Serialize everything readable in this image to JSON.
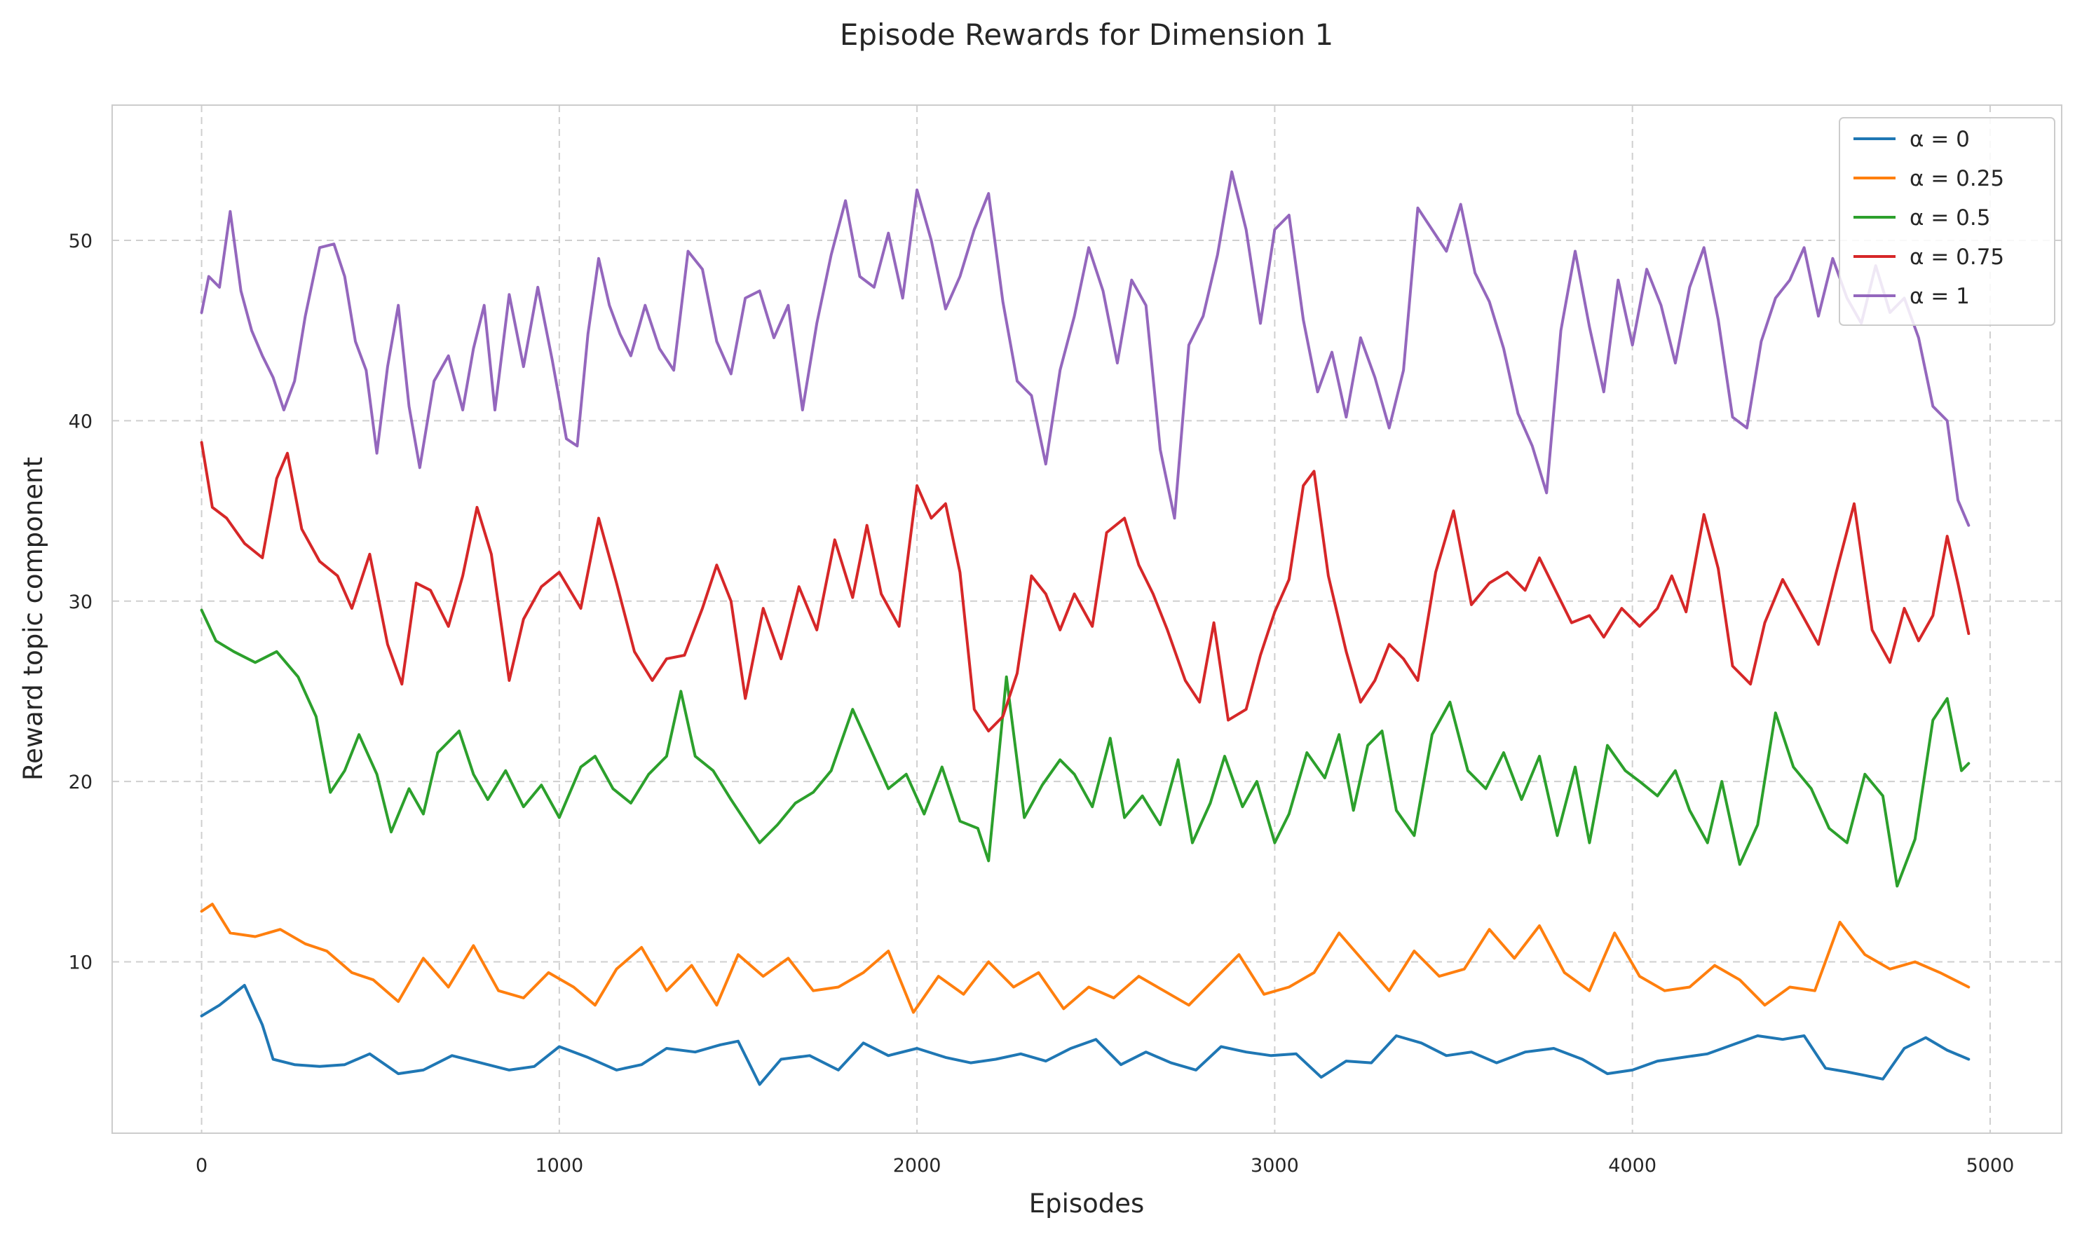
{
  "chart_data": {
    "type": "line",
    "title": "Episode Rewards for Dimension 1",
    "xlabel": "Episodes",
    "ylabel": "Reward topic component",
    "xlim": [
      -250,
      5200
    ],
    "ylim": [
      0.5,
      57.5
    ],
    "xticks": [
      0,
      1000,
      2000,
      3000,
      4000,
      5000
    ],
    "yticks": [
      10,
      20,
      30,
      40,
      50
    ],
    "grid": true,
    "legend_position": "top-right",
    "series": [
      {
        "name": "α = 0",
        "color": "#1f77b4",
        "x": [
          0,
          50,
          120,
          170,
          200,
          260,
          330,
          400,
          470,
          550,
          620,
          700,
          780,
          860,
          930,
          1000,
          1080,
          1160,
          1230,
          1300,
          1380,
          1450,
          1500,
          1560,
          1620,
          1700,
          1780,
          1850,
          1920,
          2000,
          2080,
          2150,
          2220,
          2290,
          2360,
          2430,
          2500,
          2570,
          2640,
          2710,
          2780,
          2850,
          2920,
          2990,
          3060,
          3130,
          3200,
          3270,
          3340,
          3410,
          3480,
          3550,
          3620,
          3700,
          3780,
          3860,
          3930,
          4000,
          4070,
          4140,
          4210,
          4280,
          4350,
          4420,
          4480,
          4540,
          4600,
          4650,
          4700,
          4760,
          4820,
          4880,
          4940
        ],
        "y": [
          7.0,
          7.6,
          8.7,
          6.5,
          4.6,
          4.3,
          4.2,
          4.3,
          4.9,
          3.8,
          4.0,
          4.8,
          4.4,
          4.0,
          4.2,
          5.3,
          4.7,
          4.0,
          4.3,
          5.2,
          5.0,
          5.4,
          5.6,
          3.2,
          4.6,
          4.8,
          4.0,
          5.5,
          4.8,
          5.2,
          4.7,
          4.4,
          4.6,
          4.9,
          4.5,
          5.2,
          5.7,
          4.3,
          5.0,
          4.4,
          4.0,
          5.3,
          5.0,
          4.8,
          4.9,
          3.6,
          4.5,
          4.4,
          5.9,
          5.5,
          4.8,
          5.0,
          4.4,
          5.0,
          5.2,
          4.6,
          3.8,
          4.0,
          4.5,
          4.7,
          4.9,
          5.4,
          5.9,
          5.7,
          5.9,
          4.1,
          3.9,
          3.7,
          3.5,
          5.2,
          5.8,
          5.1,
          4.6
        ]
      },
      {
        "name": "α = 0.25",
        "color": "#ff7f0e",
        "x": [
          0,
          30,
          80,
          150,
          220,
          290,
          350,
          420,
          480,
          550,
          620,
          690,
          760,
          830,
          900,
          970,
          1040,
          1100,
          1160,
          1230,
          1300,
          1370,
          1440,
          1500,
          1570,
          1640,
          1710,
          1780,
          1850,
          1920,
          1990,
          2060,
          2130,
          2200,
          2270,
          2340,
          2410,
          2480,
          2550,
          2620,
          2690,
          2760,
          2830,
          2900,
          2970,
          3040,
          3110,
          3180,
          3250,
          3320,
          3390,
          3460,
          3530,
          3600,
          3670,
          3740,
          3810,
          3880,
          3950,
          4020,
          4090,
          4160,
          4230,
          4300,
          4370,
          4440,
          4510,
          4580,
          4650,
          4720,
          4790,
          4860,
          4940
        ],
        "y": [
          12.8,
          13.2,
          11.6,
          11.4,
          11.8,
          11.0,
          10.6,
          9.4,
          9.0,
          7.8,
          10.2,
          8.6,
          10.9,
          8.4,
          8.0,
          9.4,
          8.6,
          7.6,
          9.6,
          10.8,
          8.4,
          9.8,
          7.6,
          10.4,
          9.2,
          10.2,
          8.4,
          8.6,
          9.4,
          10.6,
          7.2,
          9.2,
          8.2,
          10.0,
          8.6,
          9.4,
          7.4,
          8.6,
          8.0,
          9.2,
          8.4,
          7.6,
          9.0,
          10.4,
          8.2,
          8.6,
          9.4,
          11.6,
          10.0,
          8.4,
          10.6,
          9.2,
          9.6,
          11.8,
          10.2,
          12.0,
          9.4,
          8.4,
          11.6,
          9.2,
          8.4,
          8.6,
          9.8,
          9.0,
          7.6,
          8.6,
          8.4,
          12.2,
          10.4,
          9.6,
          10.0,
          9.4,
          8.6
        ]
      },
      {
        "name": "α = 0.5",
        "color": "#2ca02c",
        "x": [
          0,
          40,
          90,
          150,
          210,
          270,
          320,
          360,
          400,
          440,
          490,
          530,
          580,
          620,
          660,
          720,
          760,
          800,
          850,
          900,
          950,
          1000,
          1060,
          1100,
          1150,
          1200,
          1250,
          1300,
          1340,
          1380,
          1430,
          1480,
          1520,
          1560,
          1610,
          1660,
          1710,
          1760,
          1820,
          1870,
          1920,
          1970,
          2020,
          2070,
          2120,
          2170,
          2200,
          2250,
          2300,
          2350,
          2400,
          2440,
          2490,
          2540,
          2580,
          2630,
          2680,
          2730,
          2770,
          2820,
          2860,
          2910,
          2950,
          3000,
          3040,
          3090,
          3140,
          3180,
          3220,
          3260,
          3300,
          3340,
          3390,
          3440,
          3490,
          3540,
          3590,
          3640,
          3690,
          3740,
          3790,
          3840,
          3880,
          3930,
          3980,
          4020,
          4070,
          4120,
          4160,
          4210,
          4250,
          4300,
          4350,
          4400,
          4450,
          4500,
          4550,
          4600,
          4650,
          4700,
          4740,
          4790,
          4840,
          4880,
          4920,
          4940
        ],
        "y": [
          29.5,
          27.8,
          27.2,
          26.6,
          27.2,
          25.8,
          23.6,
          19.4,
          20.6,
          22.6,
          20.4,
          17.2,
          19.6,
          18.2,
          21.6,
          22.8,
          20.4,
          19.0,
          20.6,
          18.6,
          19.8,
          18.0,
          20.8,
          21.4,
          19.6,
          18.8,
          20.4,
          21.4,
          25.0,
          21.4,
          20.6,
          19.0,
          17.8,
          16.6,
          17.6,
          18.8,
          19.4,
          20.6,
          24.0,
          21.8,
          19.6,
          20.4,
          18.2,
          20.8,
          17.8,
          17.4,
          15.6,
          25.8,
          18.0,
          19.8,
          21.2,
          20.4,
          18.6,
          22.4,
          18.0,
          19.2,
          17.6,
          21.2,
          16.6,
          18.8,
          21.4,
          18.6,
          20.0,
          16.6,
          18.2,
          21.6,
          20.2,
          22.6,
          18.4,
          22.0,
          22.8,
          18.4,
          17.0,
          22.6,
          24.4,
          20.6,
          19.6,
          21.6,
          19.0,
          21.4,
          17.0,
          20.8,
          16.6,
          22.0,
          20.6,
          20.0,
          19.2,
          20.6,
          18.4,
          16.6,
          20.0,
          15.4,
          17.6,
          23.8,
          20.8,
          19.6,
          17.4,
          16.6,
          20.4,
          19.2,
          14.2,
          16.8,
          23.4,
          24.6,
          20.6,
          21.0
        ]
      },
      {
        "name": "α = 0.75",
        "color": "#d62728",
        "x": [
          0,
          30,
          70,
          120,
          170,
          210,
          240,
          280,
          330,
          380,
          420,
          470,
          520,
          560,
          600,
          640,
          690,
          730,
          770,
          810,
          860,
          900,
          950,
          1000,
          1060,
          1110,
          1160,
          1210,
          1260,
          1300,
          1350,
          1400,
          1440,
          1480,
          1520,
          1570,
          1620,
          1670,
          1720,
          1770,
          1820,
          1860,
          1900,
          1950,
          2000,
          2040,
          2080,
          2120,
          2160,
          2200,
          2240,
          2280,
          2320,
          2360,
          2400,
          2440,
          2490,
          2530,
          2580,
          2620,
          2660,
          2700,
          2750,
          2790,
          2830,
          2870,
          2920,
          2960,
          3000,
          3040,
          3080,
          3110,
          3150,
          3200,
          3240,
          3280,
          3320,
          3360,
          3400,
          3450,
          3500,
          3550,
          3600,
          3650,
          3700,
          3740,
          3780,
          3830,
          3880,
          3920,
          3970,
          4020,
          4070,
          4110,
          4150,
          4200,
          4240,
          4280,
          4330,
          4370,
          4420,
          4470,
          4520,
          4570,
          4620,
          4670,
          4720,
          4760,
          4800,
          4840,
          4880,
          4910,
          4940
        ],
        "y": [
          38.8,
          35.2,
          34.6,
          33.2,
          32.4,
          36.8,
          38.2,
          34.0,
          32.2,
          31.4,
          29.6,
          32.6,
          27.6,
          25.4,
          31.0,
          30.6,
          28.6,
          31.4,
          35.2,
          32.6,
          25.6,
          29.0,
          30.8,
          31.6,
          29.6,
          34.6,
          31.0,
          27.2,
          25.6,
          26.8,
          27.0,
          29.6,
          32.0,
          30.0,
          24.6,
          29.6,
          26.8,
          30.8,
          28.4,
          33.4,
          30.2,
          34.2,
          30.4,
          28.6,
          36.4,
          34.6,
          35.4,
          31.6,
          24.0,
          22.8,
          23.6,
          26.0,
          31.4,
          30.4,
          28.4,
          30.4,
          28.6,
          33.8,
          34.6,
          32.0,
          30.4,
          28.4,
          25.6,
          24.4,
          28.8,
          23.4,
          24.0,
          27.0,
          29.4,
          31.2,
          36.4,
          37.2,
          31.4,
          27.2,
          24.4,
          25.6,
          27.6,
          26.8,
          25.6,
          31.6,
          35.0,
          29.8,
          31.0,
          31.6,
          30.6,
          32.4,
          30.8,
          28.8,
          29.2,
          28.0,
          29.6,
          28.6,
          29.6,
          31.4,
          29.4,
          34.8,
          31.8,
          26.4,
          25.4,
          28.8,
          31.2,
          29.4,
          27.6,
          31.6,
          35.4,
          28.4,
          26.6,
          29.6,
          27.8,
          29.2,
          33.6,
          31.0,
          28.2
        ]
      },
      {
        "name": "α = 1",
        "color": "#9467bd",
        "x": [
          0,
          20,
          50,
          80,
          110,
          140,
          170,
          200,
          230,
          260,
          290,
          330,
          370,
          400,
          430,
          460,
          490,
          520,
          550,
          580,
          610,
          650,
          690,
          730,
          760,
          790,
          820,
          860,
          900,
          940,
          980,
          1020,
          1050,
          1080,
          1110,
          1140,
          1170,
          1200,
          1240,
          1280,
          1320,
          1360,
          1400,
          1440,
          1480,
          1520,
          1560,
          1600,
          1640,
          1680,
          1720,
          1760,
          1800,
          1840,
          1880,
          1920,
          1960,
          2000,
          2040,
          2080,
          2120,
          2160,
          2200,
          2240,
          2280,
          2320,
          2360,
          2400,
          2440,
          2480,
          2520,
          2560,
          2600,
          2640,
          2680,
          2720,
          2760,
          2800,
          2840,
          2880,
          2920,
          2960,
          3000,
          3040,
          3080,
          3120,
          3160,
          3200,
          3240,
          3280,
          3320,
          3360,
          3400,
          3440,
          3480,
          3520,
          3560,
          3600,
          3640,
          3680,
          3720,
          3760,
          3800,
          3840,
          3880,
          3920,
          3960,
          4000,
          4040,
          4080,
          4120,
          4160,
          4200,
          4240,
          4280,
          4320,
          4360,
          4400,
          4440,
          4480,
          4520,
          4560,
          4600,
          4640,
          4680,
          4720,
          4760,
          4800,
          4840,
          4880,
          4910,
          4940
        ],
        "y": [
          46.0,
          48.0,
          47.4,
          51.6,
          47.2,
          45.0,
          43.6,
          42.4,
          40.6,
          42.2,
          45.8,
          49.6,
          49.8,
          48.0,
          44.4,
          42.8,
          38.2,
          43.0,
          46.4,
          40.8,
          37.4,
          42.2,
          43.6,
          40.6,
          44.0,
          46.4,
          40.6,
          47.0,
          43.0,
          47.4,
          43.4,
          39.0,
          38.6,
          44.8,
          49.0,
          46.4,
          44.8,
          43.6,
          46.4,
          44.0,
          42.8,
          49.4,
          48.4,
          44.4,
          42.6,
          46.8,
          47.2,
          44.6,
          46.4,
          40.6,
          45.4,
          49.2,
          52.2,
          48.0,
          47.4,
          50.4,
          46.8,
          52.8,
          50.0,
          46.2,
          48.0,
          50.6,
          52.6,
          46.6,
          42.2,
          41.4,
          37.6,
          42.8,
          45.8,
          49.6,
          47.2,
          43.2,
          47.8,
          46.4,
          38.4,
          34.6,
          44.2,
          45.8,
          49.2,
          53.8,
          50.6,
          45.4,
          50.6,
          51.4,
          45.6,
          41.6,
          43.8,
          40.2,
          44.6,
          42.4,
          39.6,
          42.8,
          51.8,
          50.6,
          49.4,
          52.0,
          48.2,
          46.6,
          44.0,
          40.4,
          38.6,
          36.0,
          45.0,
          49.4,
          45.2,
          41.6,
          47.8,
          44.2,
          48.4,
          46.4,
          43.2,
          47.4,
          49.6,
          45.6,
          40.2,
          39.6,
          44.4,
          46.8,
          47.8,
          49.6,
          45.8,
          49.0,
          46.8,
          45.4,
          48.6,
          46.0,
          46.8,
          44.6,
          40.8,
          40.0,
          35.6,
          34.2
        ]
      }
    ]
  }
}
